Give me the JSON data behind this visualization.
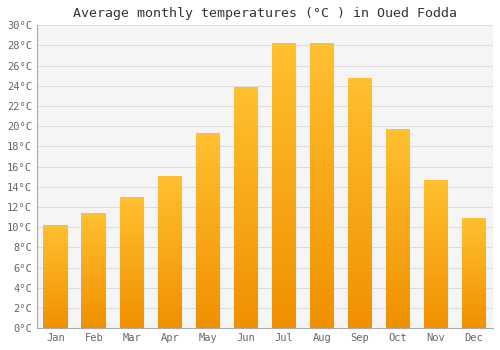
{
  "title": "Average monthly temperatures (°C ) in Oued Fodda",
  "months": [
    "Jan",
    "Feb",
    "Mar",
    "Apr",
    "May",
    "Jun",
    "Jul",
    "Aug",
    "Sep",
    "Oct",
    "Nov",
    "Dec"
  ],
  "values": [
    10.2,
    11.4,
    13.0,
    15.1,
    19.3,
    23.9,
    28.2,
    28.2,
    24.8,
    19.7,
    14.7,
    10.9
  ],
  "bar_color_top": "#FFC030",
  "bar_color_bottom": "#F09000",
  "background_color": "#ffffff",
  "plot_bg_color": "#f5f5f5",
  "grid_color": "#dddddd",
  "ylim": [
    0,
    30
  ],
  "yticks": [
    0,
    2,
    4,
    6,
    8,
    10,
    12,
    14,
    16,
    18,
    20,
    22,
    24,
    26,
    28,
    30
  ],
  "title_fontsize": 9.5,
  "tick_fontsize": 7.5,
  "tick_label_color": "#666666",
  "title_color": "#333333",
  "bar_width": 0.65,
  "left_spine_color": "#aaaaaa"
}
